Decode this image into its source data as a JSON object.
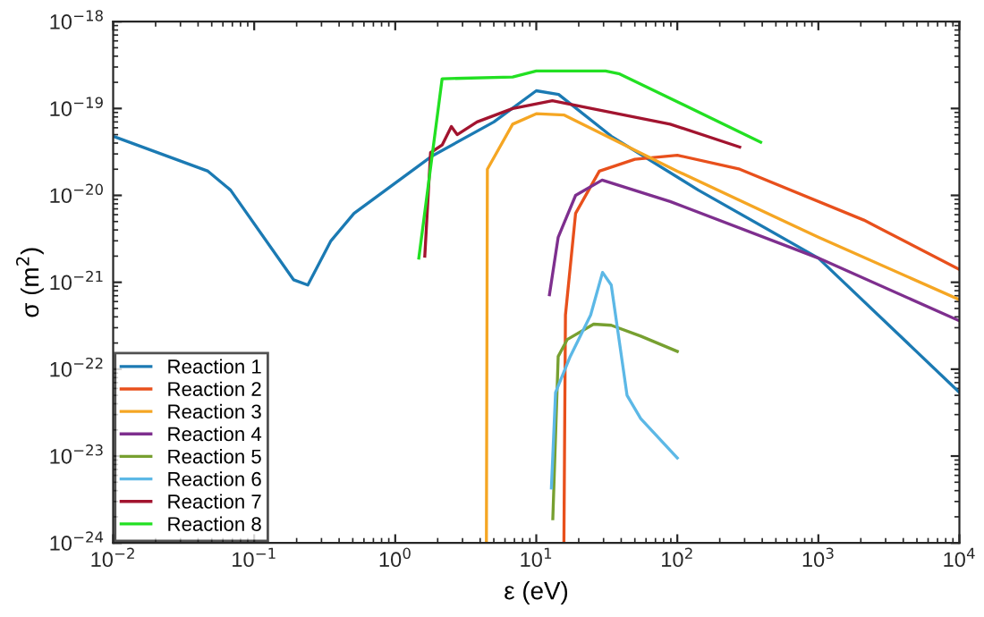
{
  "chart_data": {
    "type": "line",
    "xlabel": "ε (eV)",
    "ylabel": "σ (m$^{2}$)",
    "log": "xy",
    "grid": false,
    "legend": "bottom left",
    "marker": "none",
    "line_style": "solid",
    "xlim": [
      0.01,
      10000
    ],
    "ylim": [
      1e-24,
      1e-18
    ],
    "xticks": [
      {
        "value": 0.01,
        "label": "10$^{−2}$"
      },
      {
        "value": 0.1,
        "label": "10$^{−1}$"
      },
      {
        "value": 1,
        "label": "10$^{0}$"
      },
      {
        "value": 10,
        "label": "10$^{1}$"
      },
      {
        "value": 100,
        "label": "10$^{2}$"
      },
      {
        "value": 1000,
        "label": "10$^{3}$"
      },
      {
        "value": 10000,
        "label": "10$^{4}$"
      }
    ],
    "yticks": [
      {
        "value": 1e-24,
        "label": "10$^{−24}$"
      },
      {
        "value": 1e-23,
        "label": "10$^{−23}$"
      },
      {
        "value": 1e-22,
        "label": "10$^{−22}$"
      },
      {
        "value": 1e-21,
        "label": "10$^{−21}$"
      },
      {
        "value": 1e-20,
        "label": "10$^{−20}$"
      },
      {
        "value": 1e-19,
        "label": "10$^{−19}$"
      },
      {
        "value": 1e-18,
        "label": "10$^{−18}$"
      }
    ],
    "series": [
      {
        "name": "Reaction 1",
        "color": "#1b7ab3",
        "x": [
          0.01,
          0.047,
          0.068,
          0.19,
          0.24,
          0.35,
          0.51,
          1.8,
          5,
          10,
          14.4,
          34,
          141,
          1000,
          10000
        ],
        "values": [
          4.8e-20,
          1.9e-20,
          1.15e-20,
          1.07e-21,
          9.3e-22,
          3e-21,
          6.2e-21,
          2.8e-20,
          7e-20,
          1.6e-19,
          1.45e-19,
          4.8e-20,
          1.15e-20,
          1.9e-21,
          5.4e-23
        ]
      },
      {
        "name": "Reaction 2",
        "color": "#e8501c",
        "x": [
          15.7,
          16.1,
          19,
          28,
          50,
          100,
          277,
          2100,
          10000
        ],
        "values": [
          1e-24,
          4.2e-22,
          6.2e-21,
          1.9e-20,
          2.6e-20,
          2.9e-20,
          2e-20,
          5.2e-21,
          1.4e-21
        ]
      },
      {
        "name": "Reaction 3",
        "color": "#f5a623",
        "x": [
          4.43,
          4.5,
          6.8,
          10,
          15.8,
          100,
          1000,
          10000
        ],
        "values": [
          1e-24,
          2e-20,
          6.6e-20,
          8.7e-20,
          8.4e-20,
          1.9e-20,
          3.3e-21,
          6.3e-22
        ]
      },
      {
        "name": "Reaction 4",
        "color": "#7e2f8e",
        "x": [
          12.4,
          14.3,
          19,
          29.3,
          89,
          1000,
          10000
        ],
        "values": [
          7.2e-22,
          3.3e-21,
          1e-20,
          1.5e-20,
          8.5e-21,
          1.9e-21,
          3.6e-22
        ]
      },
      {
        "name": "Reaction 5",
        "color": "#77a030",
        "x": [
          13.1,
          14.3,
          16.6,
          25.5,
          34,
          55,
          100
        ],
        "values": [
          1.9e-24,
          1.4e-22,
          2.2e-22,
          3.3e-22,
          3.2e-22,
          2.4e-22,
          1.6e-22
        ]
      },
      {
        "name": "Reaction 6",
        "color": "#5cb8e6",
        "x": [
          12.8,
          13.7,
          17.4,
          24.3,
          29.5,
          34,
          44,
          55,
          100
        ],
        "values": [
          4.3e-24,
          5.4e-23,
          1.4e-22,
          4.2e-22,
          1.3e-21,
          9.3e-22,
          5e-23,
          2.7e-23,
          9.5e-24
        ]
      },
      {
        "name": "Reaction 7",
        "color": "#a2142f",
        "x": [
          1.62,
          1.78,
          2.15,
          2.5,
          2.75,
          3.8,
          6.8,
          13,
          89,
          277
        ],
        "values": [
          2e-21,
          3.1e-20,
          3.8e-20,
          6.2e-20,
          5e-20,
          7e-20,
          1e-19,
          1.23e-19,
          6.6e-20,
          3.6e-20
        ]
      },
      {
        "name": "Reaction 8",
        "color": "#22e022",
        "x": [
          1.47,
          2.15,
          6.8,
          10,
          31,
          39,
          390
        ],
        "values": [
          1.9e-21,
          2.2e-19,
          2.3e-19,
          2.7e-19,
          2.7e-19,
          2.5e-19,
          4.1e-20
        ]
      }
    ]
  }
}
